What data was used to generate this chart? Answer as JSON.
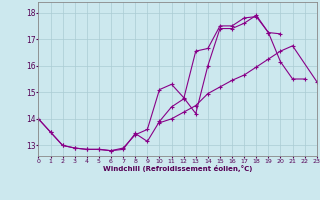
{
  "xlabel": "Windchill (Refroidissement éolien,°C)",
  "background_color": "#cce8ee",
  "grid_color": "#aaccd4",
  "line_color": "#880088",
  "xmin": 0,
  "xmax": 23,
  "ymin": 12.6,
  "ymax": 18.4,
  "yticks": [
    13,
    14,
    15,
    16,
    17,
    18
  ],
  "xticks": [
    0,
    1,
    2,
    3,
    4,
    5,
    6,
    7,
    8,
    9,
    10,
    11,
    12,
    13,
    14,
    15,
    16,
    17,
    18,
    19,
    20,
    21,
    22,
    23
  ],
  "curve1_x": [
    0,
    1,
    2,
    3,
    4,
    5,
    6,
    7,
    8,
    9,
    10,
    11,
    12,
    13,
    14,
    15,
    16,
    17,
    18,
    19,
    20,
    21,
    22
  ],
  "curve1_y": [
    14.0,
    13.5,
    13.0,
    12.9,
    12.85,
    12.85,
    12.8,
    12.85,
    13.45,
    13.15,
    13.9,
    14.45,
    14.75,
    16.55,
    16.65,
    17.5,
    17.5,
    17.8,
    17.85,
    17.25,
    16.15,
    15.5,
    15.5
  ],
  "curve2_x": [
    0,
    1,
    2,
    3,
    4,
    5,
    6,
    7,
    8,
    9,
    10,
    11,
    12,
    13,
    14,
    15,
    16,
    17,
    18,
    19,
    20
  ],
  "curve2_y": [
    14.0,
    13.5,
    13.0,
    12.9,
    12.85,
    12.85,
    12.8,
    12.9,
    13.4,
    13.6,
    15.1,
    15.3,
    14.8,
    14.2,
    16.0,
    17.4,
    17.4,
    17.6,
    17.9,
    17.25,
    17.2
  ],
  "curve3_x": [
    10,
    11,
    12,
    13,
    14,
    15,
    16,
    17,
    18,
    19,
    20,
    21,
    23
  ],
  "curve3_y": [
    13.85,
    14.0,
    14.25,
    14.5,
    14.95,
    15.2,
    15.45,
    15.65,
    15.95,
    16.25,
    16.55,
    16.75,
    15.4
  ]
}
